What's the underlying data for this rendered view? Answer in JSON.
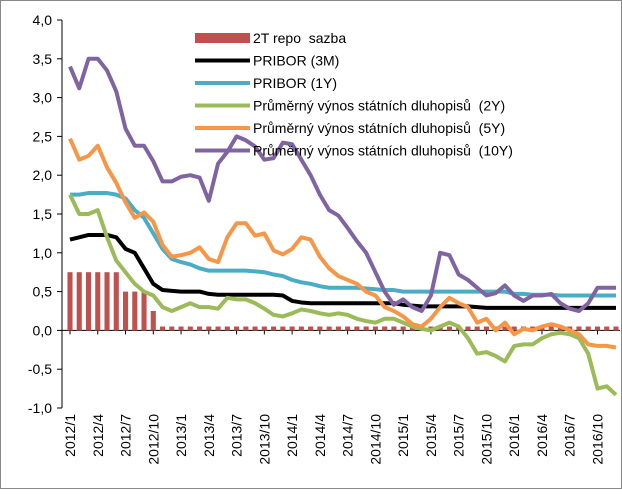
{
  "chart_data": {
    "type": "line",
    "categories": [
      "2012/1",
      null,
      null,
      "2012/4",
      null,
      null,
      "2012/7",
      null,
      null,
      "2012/10",
      null,
      null,
      "2013/1",
      null,
      null,
      "2013/4",
      null,
      null,
      "2013/7",
      null,
      null,
      "2013/10",
      null,
      null,
      "2014/1",
      null,
      null,
      "2014/4",
      null,
      null,
      "2014/7",
      null,
      null,
      "2014/10",
      null,
      null,
      "2015/1",
      null,
      null,
      "2015/4",
      null,
      null,
      "2015/7",
      null,
      null,
      "2015/10",
      null,
      null,
      "2016/1",
      null,
      null,
      "2016/4",
      null,
      null,
      "2016/7",
      null,
      null,
      "2016/10",
      null,
      null
    ],
    "ylim": [
      -1,
      4
    ],
    "yticks": [
      {
        "value": 4,
        "label": "4,0"
      },
      {
        "value": 3.5,
        "label": "3,5"
      },
      {
        "value": 3,
        "label": "3,0"
      },
      {
        "value": 2.5,
        "label": "2,5"
      },
      {
        "value": 2,
        "label": "2,0"
      },
      {
        "value": 1.5,
        "label": "1,5"
      },
      {
        "value": 1,
        "label": "1,0"
      },
      {
        "value": 0.5,
        "label": "0,5"
      },
      {
        "value": 0,
        "label": "0,0"
      },
      {
        "value": -0.5,
        "label": "-0,5"
      },
      {
        "value": -1,
        "label": "-1,0"
      }
    ],
    "grid": false,
    "legend": "top-left",
    "series": [
      {
        "name": "2T repo  sazba",
        "type": "bar",
        "color": "#c0504d",
        "values": [
          0.75,
          0.75,
          0.75,
          0.75,
          0.75,
          0.75,
          0.5,
          0.5,
          0.5,
          0.25,
          0.05,
          0.05,
          0.05,
          0.05,
          0.05,
          0.05,
          0.05,
          0.05,
          0.05,
          0.05,
          0.05,
          0.05,
          0.05,
          0.05,
          0.05,
          0.05,
          0.05,
          0.05,
          0.05,
          0.05,
          0.05,
          0.05,
          0.05,
          0.05,
          0.05,
          0.05,
          0.05,
          0.05,
          0.05,
          0.05,
          0.05,
          0.05,
          0.05,
          0.05,
          0.05,
          0.05,
          0.05,
          0.05,
          0.05,
          0.05,
          0.05,
          0.05,
          0.05,
          0.05,
          0.05,
          0.05,
          0.05,
          0.05,
          0.05,
          0.05
        ]
      },
      {
        "name": "PRIBOR (3M)",
        "type": "line",
        "color": "#000000",
        "values": [
          1.17,
          1.2,
          1.23,
          1.23,
          1.23,
          1.2,
          1.05,
          1.0,
          0.8,
          0.6,
          0.52,
          0.51,
          0.5,
          0.5,
          0.5,
          0.47,
          0.46,
          0.46,
          0.46,
          0.46,
          0.46,
          0.46,
          0.46,
          0.45,
          0.38,
          0.36,
          0.35,
          0.35,
          0.35,
          0.35,
          0.35,
          0.35,
          0.35,
          0.35,
          0.35,
          0.35,
          0.33,
          0.32,
          0.31,
          0.31,
          0.31,
          0.31,
          0.31,
          0.31,
          0.3,
          0.29,
          0.29,
          0.29,
          0.29,
          0.29,
          0.29,
          0.29,
          0.29,
          0.29,
          0.29,
          0.29,
          0.29,
          0.29,
          0.29,
          0.29
        ]
      },
      {
        "name": "PRIBOR (1Y)",
        "type": "line",
        "color": "#4bacc6",
        "values": [
          1.75,
          1.75,
          1.77,
          1.77,
          1.77,
          1.75,
          1.7,
          1.55,
          1.45,
          1.25,
          1.05,
          0.92,
          0.88,
          0.85,
          0.8,
          0.77,
          0.77,
          0.77,
          0.77,
          0.77,
          0.76,
          0.75,
          0.72,
          0.7,
          0.65,
          0.62,
          0.6,
          0.57,
          0.55,
          0.55,
          0.55,
          0.55,
          0.54,
          0.53,
          0.52,
          0.52,
          0.5,
          0.5,
          0.5,
          0.5,
          0.5,
          0.5,
          0.5,
          0.5,
          0.5,
          0.5,
          0.5,
          0.5,
          0.47,
          0.47,
          0.46,
          0.46,
          0.46,
          0.45,
          0.45,
          0.45,
          0.45,
          0.45,
          0.45,
          0.45
        ]
      },
      {
        "name": "Průměrný výnos státních dluhopisů  (2Y)",
        "type": "line",
        "color": "#9bbb59",
        "values": [
          1.75,
          1.5,
          1.5,
          1.55,
          1.2,
          0.9,
          0.75,
          0.6,
          0.5,
          0.45,
          0.3,
          0.25,
          0.3,
          0.35,
          0.3,
          0.3,
          0.28,
          0.42,
          0.4,
          0.4,
          0.35,
          0.28,
          0.2,
          0.18,
          0.22,
          0.27,
          0.25,
          0.22,
          0.2,
          0.22,
          0.2,
          0.15,
          0.12,
          0.1,
          0.15,
          0.15,
          0.1,
          0.05,
          0.02,
          0.0,
          0.05,
          0.1,
          0.05,
          -0.1,
          -0.3,
          -0.28,
          -0.33,
          -0.4,
          -0.2,
          -0.18,
          -0.18,
          -0.1,
          -0.05,
          -0.03,
          -0.05,
          -0.1,
          -0.3,
          -0.75,
          -0.72,
          -0.83
        ]
      },
      {
        "name": "Průměrný výnos státních dluhopisů  (5Y)",
        "type": "line",
        "color": "#f79646",
        "values": [
          2.47,
          2.2,
          2.25,
          2.38,
          2.1,
          1.9,
          1.65,
          1.45,
          1.52,
          1.4,
          1.1,
          0.95,
          0.97,
          1.0,
          1.07,
          0.92,
          0.88,
          1.2,
          1.38,
          1.38,
          1.22,
          1.25,
          1.03,
          0.98,
          1.05,
          1.2,
          1.17,
          0.95,
          0.8,
          0.7,
          0.65,
          0.6,
          0.5,
          0.45,
          0.3,
          0.25,
          0.18,
          0.08,
          0.05,
          0.15,
          0.3,
          0.42,
          0.35,
          0.3,
          0.1,
          0.15,
          0.0,
          0.1,
          -0.05,
          0.02,
          0.0,
          0.05,
          0.08,
          0.05,
          0.0,
          -0.05,
          -0.18,
          -0.2,
          -0.2,
          -0.22
        ]
      },
      {
        "name": "Průměrný výnos státních dluhopisů  (10Y)",
        "type": "line",
        "color": "#8064a2",
        "values": [
          3.4,
          3.12,
          3.5,
          3.5,
          3.35,
          3.08,
          2.6,
          2.38,
          2.38,
          2.18,
          1.92,
          1.92,
          1.98,
          2.0,
          1.97,
          1.67,
          2.15,
          2.3,
          2.5,
          2.45,
          2.37,
          2.2,
          2.22,
          2.42,
          2.4,
          2.2,
          2.0,
          1.75,
          1.55,
          1.48,
          1.32,
          1.15,
          1.0,
          0.75,
          0.5,
          0.33,
          0.4,
          0.3,
          0.25,
          0.45,
          1.0,
          0.97,
          0.72,
          0.65,
          0.55,
          0.45,
          0.48,
          0.58,
          0.45,
          0.38,
          0.45,
          0.45,
          0.47,
          0.35,
          0.28,
          0.25,
          0.35,
          0.55,
          0.55,
          0.55
        ]
      }
    ]
  }
}
